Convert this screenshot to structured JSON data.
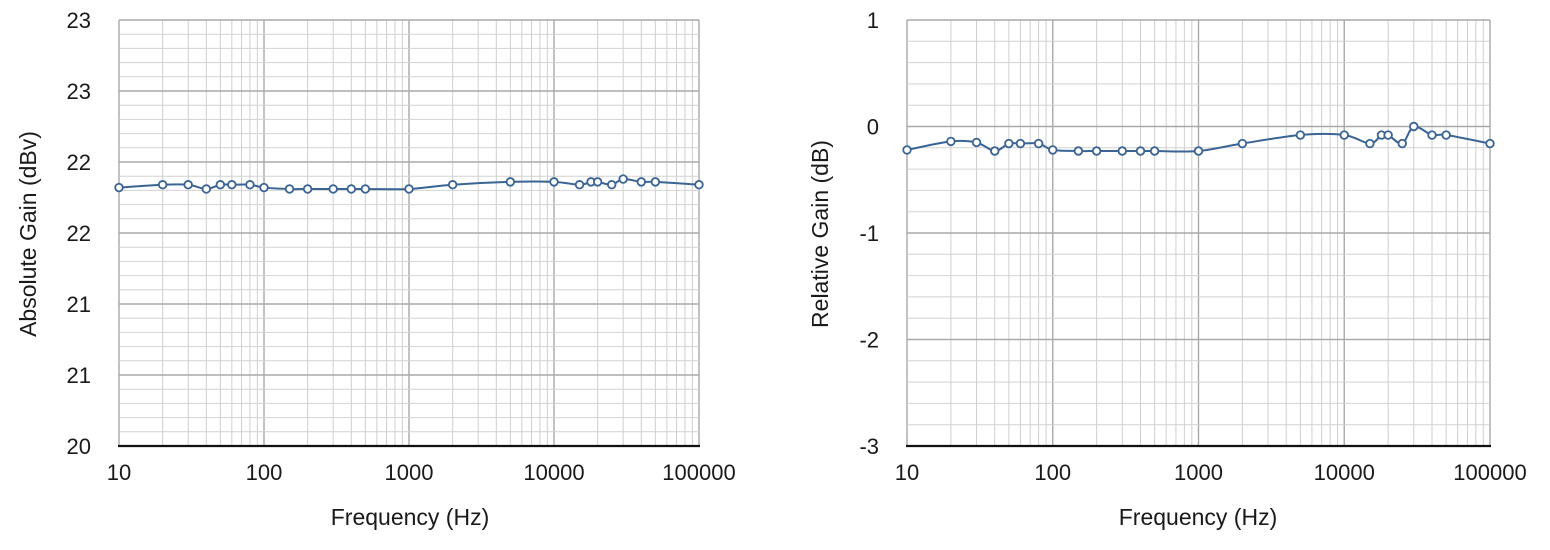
{
  "chart_data": [
    {
      "type": "line",
      "title": "",
      "xlabel": "Frequency (Hz)",
      "ylabel": "Absolute Gain (dBv)",
      "xscale": "log",
      "xlim": [
        10,
        100000
      ],
      "ylim": [
        20,
        23
      ],
      "x_ticks": [
        "10",
        "100",
        "1000",
        "10000",
        "100000"
      ],
      "y_ticks": [
        "20",
        "21",
        "21",
        "22",
        "22",
        "23",
        "23"
      ],
      "grid": true,
      "legend": "none",
      "series": [
        {
          "color": "#3a6494",
          "marker": "open-circle",
          "x": [
            10,
            20,
            30,
            40,
            50,
            60,
            80,
            100,
            150,
            200,
            300,
            400,
            500,
            1000,
            2000,
            5000,
            10000,
            15000,
            18000,
            20000,
            25000,
            30000,
            40000,
            50000,
            100000
          ],
          "y": [
            21.82,
            21.84,
            21.84,
            21.81,
            21.84,
            21.84,
            21.84,
            21.82,
            21.81,
            21.81,
            21.81,
            21.81,
            21.81,
            21.81,
            21.84,
            21.86,
            21.86,
            21.84,
            21.86,
            21.86,
            21.84,
            21.88,
            21.86,
            21.86,
            21.84
          ]
        }
      ]
    },
    {
      "type": "line",
      "title": "",
      "xlabel": "Frequency (Hz)",
      "ylabel": "Relative Gain (dB)",
      "xscale": "log",
      "xlim": [
        10,
        100000
      ],
      "ylim": [
        -3,
        1
      ],
      "x_ticks": [
        "10",
        "100",
        "1000",
        "10000",
        "100000"
      ],
      "y_ticks": [
        "-3",
        "-2",
        "-1",
        "0",
        "1"
      ],
      "grid": true,
      "legend": "none",
      "series": [
        {
          "color": "#3a6494",
          "marker": "open-circle",
          "x": [
            10,
            20,
            30,
            40,
            50,
            60,
            80,
            100,
            150,
            200,
            300,
            400,
            500,
            1000,
            2000,
            5000,
            10000,
            15000,
            18000,
            20000,
            25000,
            30000,
            40000,
            50000,
            100000
          ],
          "y": [
            -0.22,
            -0.14,
            -0.15,
            -0.23,
            -0.16,
            -0.16,
            -0.16,
            -0.22,
            -0.23,
            -0.23,
            -0.23,
            -0.23,
            -0.23,
            -0.23,
            -0.16,
            -0.08,
            -0.08,
            -0.16,
            -0.08,
            -0.08,
            -0.16,
            0.0,
            -0.08,
            -0.08,
            -0.16
          ]
        }
      ]
    }
  ]
}
